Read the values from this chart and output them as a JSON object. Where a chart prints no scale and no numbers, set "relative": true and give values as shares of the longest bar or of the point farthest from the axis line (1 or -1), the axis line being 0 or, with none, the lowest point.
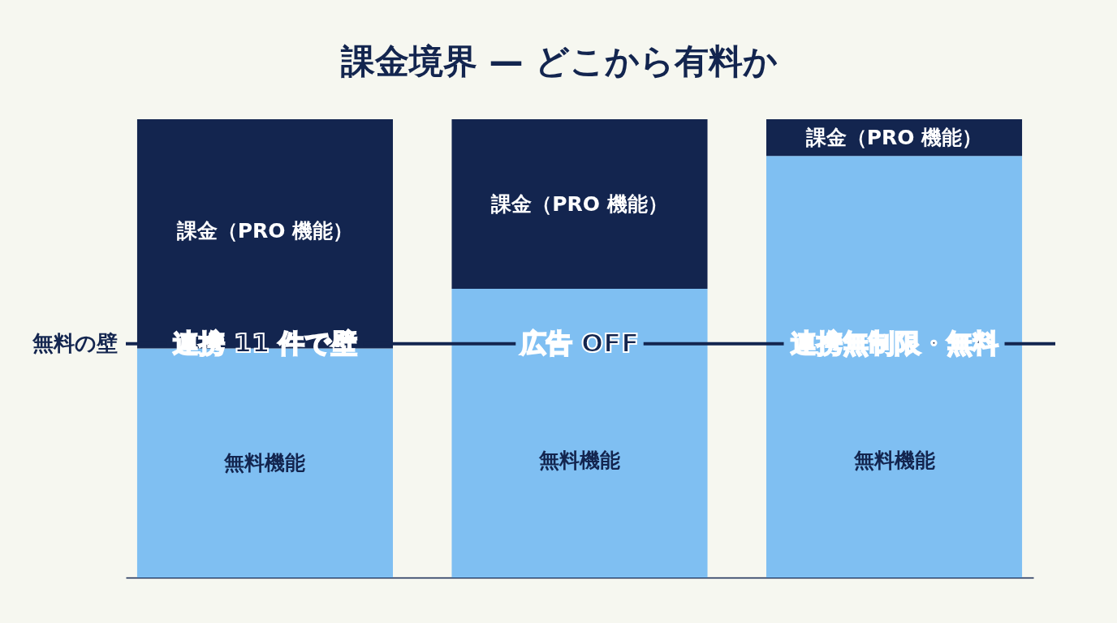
{
  "chart_data": {
    "type": "bar",
    "title": "課金境界 — どこから有料か",
    "categories": [
      null,
      null,
      null
    ],
    "stacked": true,
    "relative": true,
    "legend": false,
    "series": [
      {
        "name": "無料機能",
        "color": "#7fbff2",
        "values": [
          0.5,
          0.63,
          0.92
        ]
      },
      {
        "name": "課金（PRO 機能）",
        "color": "#13254f",
        "values": [
          0.5,
          0.37,
          0.08
        ]
      }
    ],
    "ref_lines": [
      {
        "axis": "y",
        "value": 0.51,
        "label": "無料の壁",
        "color": "#13254f"
      }
    ],
    "annotations": [
      {
        "text": "連携 11 件で壁",
        "y": 0.51
      },
      {
        "text": "広告 OFF",
        "y": 0.51
      },
      {
        "text": "連携無制限・無料",
        "y": 0.51
      }
    ]
  }
}
